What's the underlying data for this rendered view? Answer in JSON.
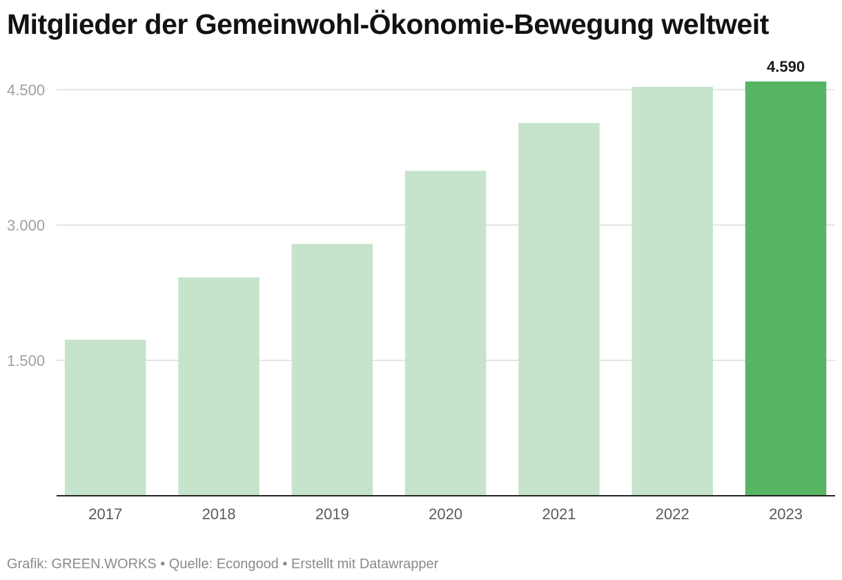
{
  "chart_data": {
    "type": "bar",
    "title": "Mitglieder der Gemeinwohl-Ökonomie-Bewegung weltweit",
    "categories": [
      "2017",
      "2018",
      "2019",
      "2020",
      "2021",
      "2022",
      "2023"
    ],
    "values": [
      1730,
      2420,
      2790,
      3600,
      4130,
      4530,
      4590
    ],
    "ylim": [
      0,
      4590
    ],
    "yticks": [
      1500,
      3000,
      4500
    ],
    "ytick_labels": [
      "1.500",
      "3.000",
      "4.500"
    ],
    "xlabel": "",
    "ylabel": "",
    "grid": true,
    "highlight_index": 6,
    "data_labels": [
      {
        "index": 6,
        "text": "4.590"
      }
    ],
    "colors": {
      "bar": "#c5e4cb",
      "highlight": "#57b463",
      "grid": "#e3e3e3",
      "axis": "#222222"
    }
  },
  "footer": {
    "text": "Grafik: GREEN.WORKS • Quelle: Econgood • Erstellt mit Datawrapper"
  }
}
